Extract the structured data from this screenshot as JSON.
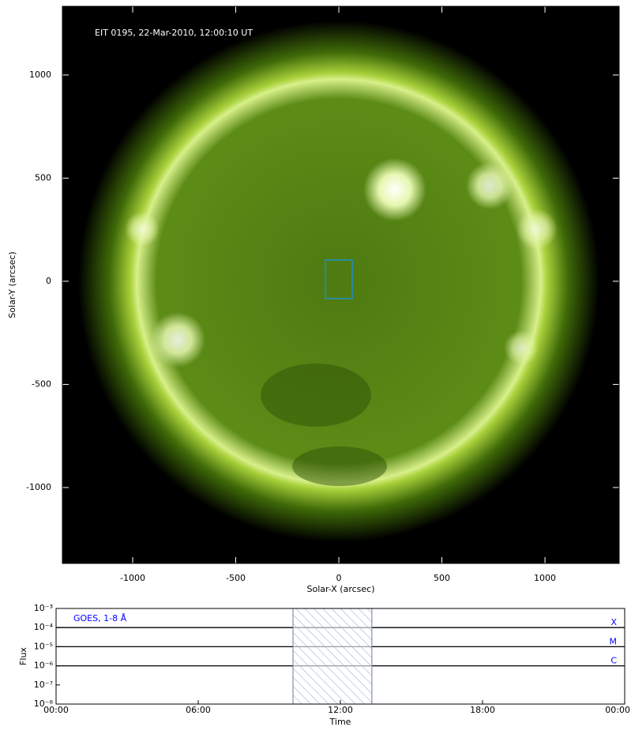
{
  "chart_data": [
    {
      "type": "image",
      "title": "EIT 0195, 22-Mar-2010, 12:00:10 UT",
      "xlabel": "Solar-X (arcsec)",
      "ylabel": "Solar-Y (arcsec)",
      "xlim": [
        -1341,
        1360
      ],
      "ylim": [
        -1368,
        1333
      ],
      "xticks": [
        -1000,
        -500,
        0,
        500,
        1000
      ],
      "yticks": [
        -1000,
        -500,
        0,
        500,
        1000
      ],
      "box": {
        "x": [
          -65,
          65
        ],
        "y": [
          -84,
          103
        ],
        "color": "#1e90c8"
      }
    },
    {
      "type": "line",
      "title": "GOES, 1-8 Å",
      "xlabel": "Time",
      "ylabel": "Flux",
      "log_y": true,
      "xlim": [
        0,
        24
      ],
      "xticks": [
        {
          "value": 0,
          "label": "00:00"
        },
        {
          "value": 6,
          "label": "06:00"
        },
        {
          "value": 12,
          "label": "12:00"
        },
        {
          "value": 18,
          "label": "18:00"
        },
        {
          "value": 24,
          "label": "00:00"
        }
      ],
      "ylim": [
        1e-08,
        0.001
      ],
      "yticks": [
        {
          "value": 1e-08,
          "label": "10⁻⁸"
        },
        {
          "value": 1e-07,
          "label": "10⁻⁷"
        },
        {
          "value": 1e-06,
          "label": "10⁻⁶"
        },
        {
          "value": 1e-05,
          "label": "10⁻⁵"
        },
        {
          "value": 0.0001,
          "label": "10⁻⁴"
        },
        {
          "value": 0.001,
          "label": "10⁻³"
        }
      ],
      "levels": [
        {
          "value": 0.0001,
          "label": "X"
        },
        {
          "value": 1e-05,
          "label": "M"
        },
        {
          "value": 1e-06,
          "label": "C"
        }
      ],
      "span": [
        10,
        13.33
      ],
      "color": "#0000ff"
    }
  ]
}
